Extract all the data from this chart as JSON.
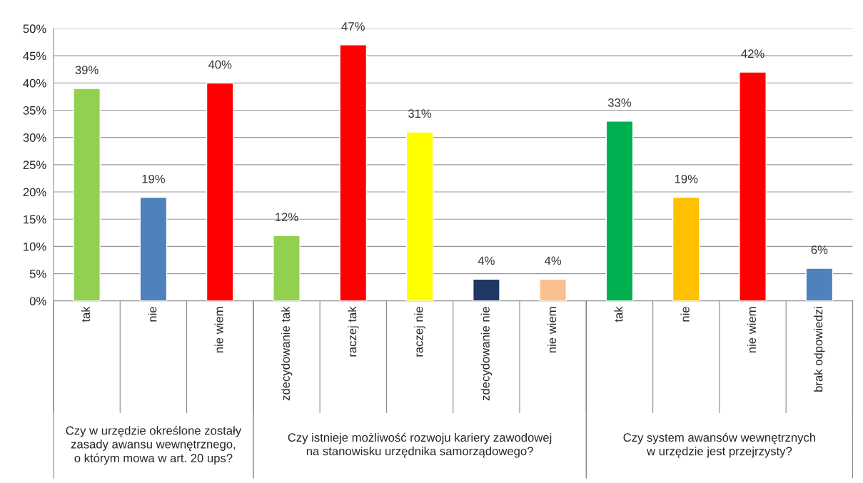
{
  "chart_data": {
    "type": "bar",
    "categories": [
      "tak",
      "nie",
      "nie wiem",
      "zdecydowanie tak",
      "raczej tak",
      "raczej nie",
      "zdecydowanie nie",
      "nie wiem",
      "tak",
      "nie",
      "nie wiem",
      "brak odpowiedzi"
    ],
    "values": [
      39,
      19,
      40,
      12,
      47,
      31,
      4,
      4,
      33,
      19,
      42,
      6
    ],
    "colors": [
      "#92d050",
      "#4f81bd",
      "#ff0000",
      "#92d050",
      "#ff0000",
      "#ffff00",
      "#1f3864",
      "#fac090",
      "#00b050",
      "#ffc000",
      "#ff0000",
      "#4f81bd"
    ],
    "value_labels": [
      "39%",
      "19%",
      "40%",
      "12%",
      "47%",
      "31%",
      "4%",
      "4%",
      "33%",
      "19%",
      "42%",
      "6%"
    ],
    "ylim": [
      0,
      50
    ],
    "yticks": [
      {
        "value": 0,
        "label": "0%"
      },
      {
        "value": 5,
        "label": "5%"
      },
      {
        "value": 10,
        "label": "10%"
      },
      {
        "value": 15,
        "label": "15%"
      },
      {
        "value": 20,
        "label": "20%"
      },
      {
        "value": 25,
        "label": "25%"
      },
      {
        "value": 30,
        "label": "30%"
      },
      {
        "value": 35,
        "label": "35%"
      },
      {
        "value": 40,
        "label": "40%"
      },
      {
        "value": 45,
        "label": "45%"
      },
      {
        "value": 50,
        "label": "50%"
      }
    ],
    "grid": "y",
    "annotations": [
      "Czy w urzędzie określone zostały\nzasady awansu wewnętrznego,\no którym mowa w art. 20 ups?",
      "Czy istnieje możliwość rozwoju kariery zawodowej\nna stanowisku urzędnika samorządowego?",
      "Czy system awansów wewnętrznych\nw urzędzie jest przejrzysty?"
    ]
  }
}
